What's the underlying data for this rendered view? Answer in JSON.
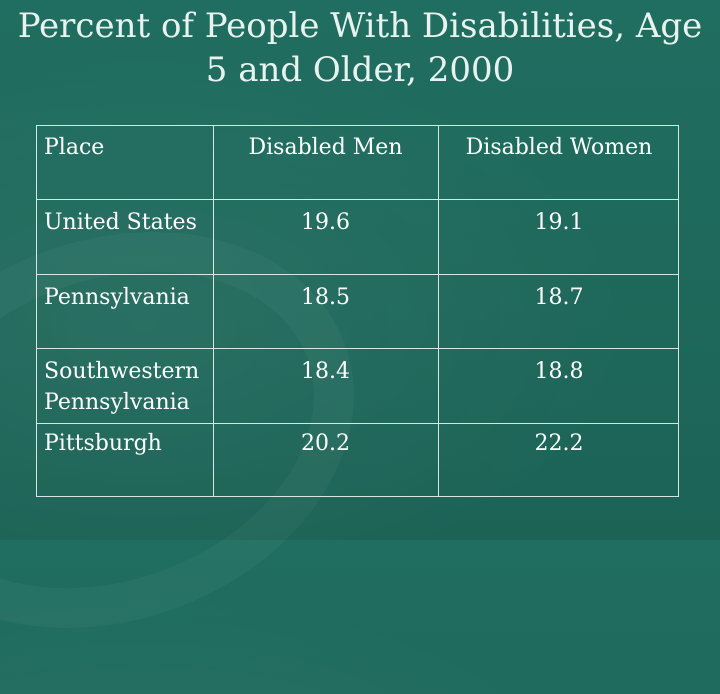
{
  "slide": {
    "title_line1": "Percent of People With Disabilities, Age",
    "title_line2": "5 and Older, 2000"
  },
  "table": {
    "headers": [
      "Place",
      "Disabled Men",
      "Disabled Women"
    ],
    "rows": [
      {
        "place": "United States",
        "men": "19.6",
        "women": "19.1"
      },
      {
        "place": "Pennsylvania",
        "men": "18.5",
        "women": "18.7"
      },
      {
        "place_line1": "Southwestern",
        "place_line2": "Pennsylvania",
        "men": "18.4",
        "women": "18.8"
      },
      {
        "place": "Pittsburgh",
        "men": "20.2",
        "women": "22.2"
      }
    ]
  }
}
